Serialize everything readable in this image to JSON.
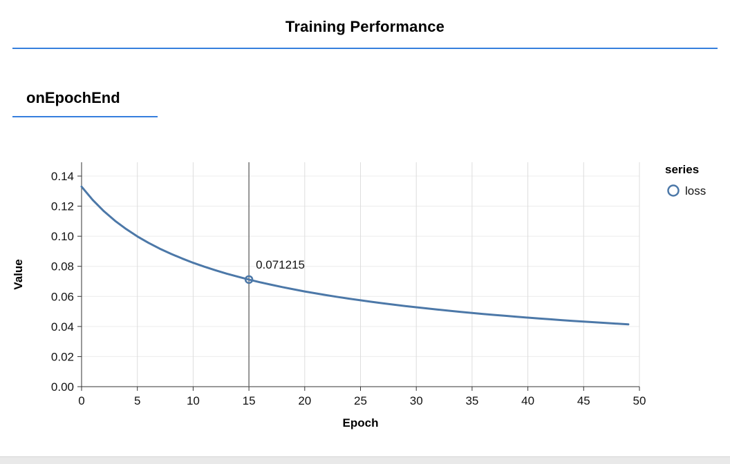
{
  "header": {
    "title": "Training Performance"
  },
  "section": {
    "title": "onEpochEnd"
  },
  "colors": {
    "accent_rule": "#357edd",
    "series_blue": "#4c78a8",
    "hover_rule": "#757575",
    "gridline": "#dddddd",
    "axis": "#333333"
  },
  "chart_data": {
    "type": "line",
    "title": "",
    "xlabel": "Epoch",
    "ylabel": "Value",
    "xlim": [
      0,
      50
    ],
    "ylim": [
      0,
      0.14
    ],
    "x_ticks": [
      0,
      5,
      10,
      15,
      20,
      25,
      30,
      35,
      40,
      45,
      50
    ],
    "y_ticks": [
      0,
      0.02,
      0.04,
      0.06,
      0.08,
      0.1,
      0.12,
      0.14
    ],
    "grid": true,
    "legend": {
      "title": "series",
      "position": "right",
      "items": [
        {
          "label": "loss",
          "color": "#4c78a8"
        }
      ]
    },
    "hover": {
      "x": 15,
      "y": 0.071215,
      "label": "0.071215"
    },
    "series": [
      {
        "name": "loss",
        "color": "#4c78a8",
        "x": [
          0,
          1,
          2,
          3,
          4,
          5,
          6,
          7,
          8,
          9,
          10,
          11,
          12,
          13,
          14,
          15,
          16,
          17,
          18,
          19,
          20,
          21,
          22,
          23,
          24,
          25,
          26,
          27,
          28,
          29,
          30,
          31,
          32,
          33,
          34,
          35,
          36,
          37,
          38,
          39,
          40,
          41,
          42,
          43,
          44,
          45,
          46,
          47,
          48,
          49
        ],
        "values": [
          0.133,
          0.12413,
          0.11665,
          0.11027,
          0.10474,
          0.0999,
          0.09561,
          0.09178,
          0.08834,
          0.08522,
          0.08237,
          0.07977,
          0.07737,
          0.07515,
          0.07311,
          0.071215,
          0.06942,
          0.06775,
          0.06618,
          0.06471,
          0.06332,
          0.06201,
          0.06077,
          0.05959,
          0.05848,
          0.05741,
          0.0564,
          0.05543,
          0.05451,
          0.05362,
          0.05278,
          0.05196,
          0.05118,
          0.05043,
          0.04971,
          0.04902,
          0.04835,
          0.04771,
          0.04708,
          0.04648,
          0.0459,
          0.04534,
          0.04479,
          0.04427,
          0.04376,
          0.04326,
          0.04278,
          0.04231,
          0.04186,
          0.04142
        ]
      }
    ]
  }
}
